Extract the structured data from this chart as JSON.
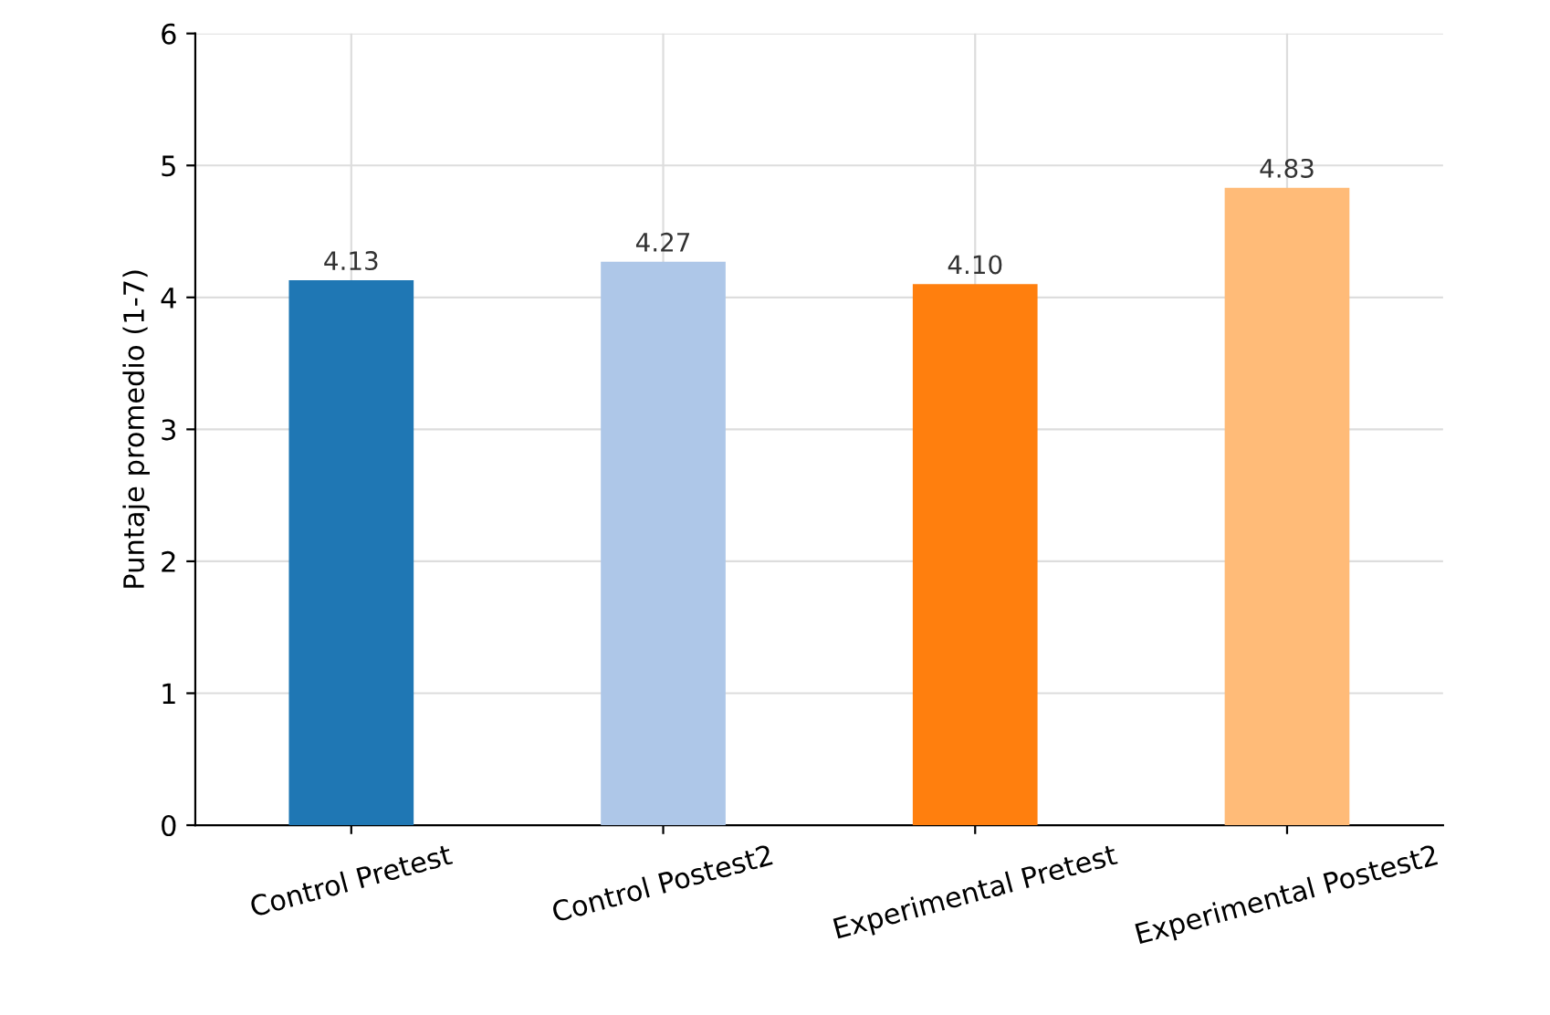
{
  "chart_data": {
    "type": "bar",
    "ylabel": "Puntaje promedio (1-7)",
    "categories": [
      "Control Pretest",
      "Control Postest2",
      "Experimental Pretest",
      "Experimental Postest2"
    ],
    "values": [
      4.13,
      4.27,
      4.1,
      4.83
    ],
    "colors": [
      "#1f77b4",
      "#aec7e8",
      "#ff7f0e",
      "#ffbb78"
    ],
    "value_labels": [
      "4.13",
      "4.27",
      "4.10",
      "4.83"
    ],
    "ylim": [
      0,
      6
    ],
    "yticks": [
      0,
      1,
      2,
      3,
      4,
      5,
      6
    ],
    "grid": true
  }
}
